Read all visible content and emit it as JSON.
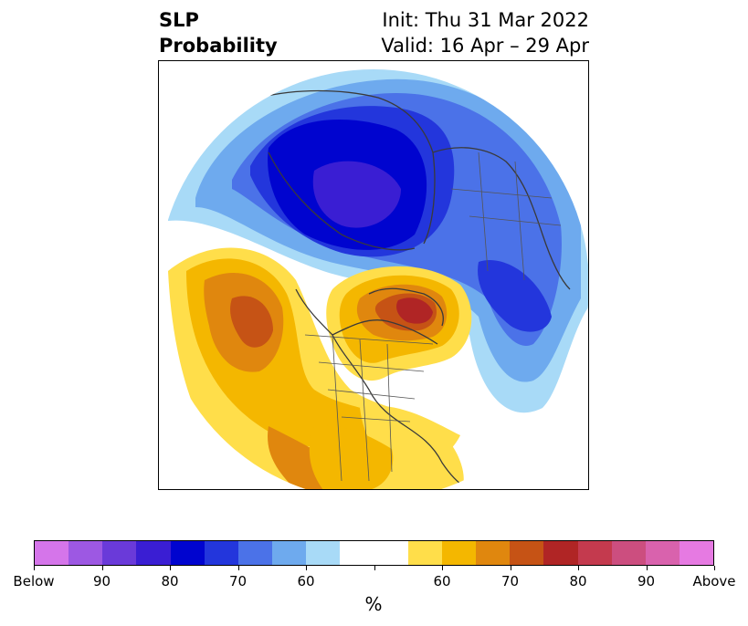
{
  "title": {
    "left_line1": "SLP",
    "left_line2": "Probability",
    "right_line1": "Init: Thu 31 Mar 2022",
    "right_line2": "Valid: 16 Apr – 29 Apr"
  },
  "colorbar": {
    "colors": [
      "#d575ea",
      "#9d58e3",
      "#6a3ad9",
      "#3a1ed3",
      "#0004cf",
      "#2336dc",
      "#4b72e8",
      "#6eaaee",
      "#a8daf7",
      "#ffffff",
      "#ffffff",
      "#ffde4a",
      "#f4b700",
      "#e0870e",
      "#c65315",
      "#b02525",
      "#c43a4e",
      "#cc4e7f",
      "#d962ad",
      "#e67ae2"
    ],
    "labels": [
      "Below",
      "90",
      "80",
      "70",
      "60",
      "60",
      "70",
      "80",
      "90",
      "Above"
    ],
    "units": "%"
  },
  "map": {
    "projection": "polar-stereographic",
    "features": [
      "coastlines",
      "country-borders",
      "us-state-borders"
    ]
  }
}
